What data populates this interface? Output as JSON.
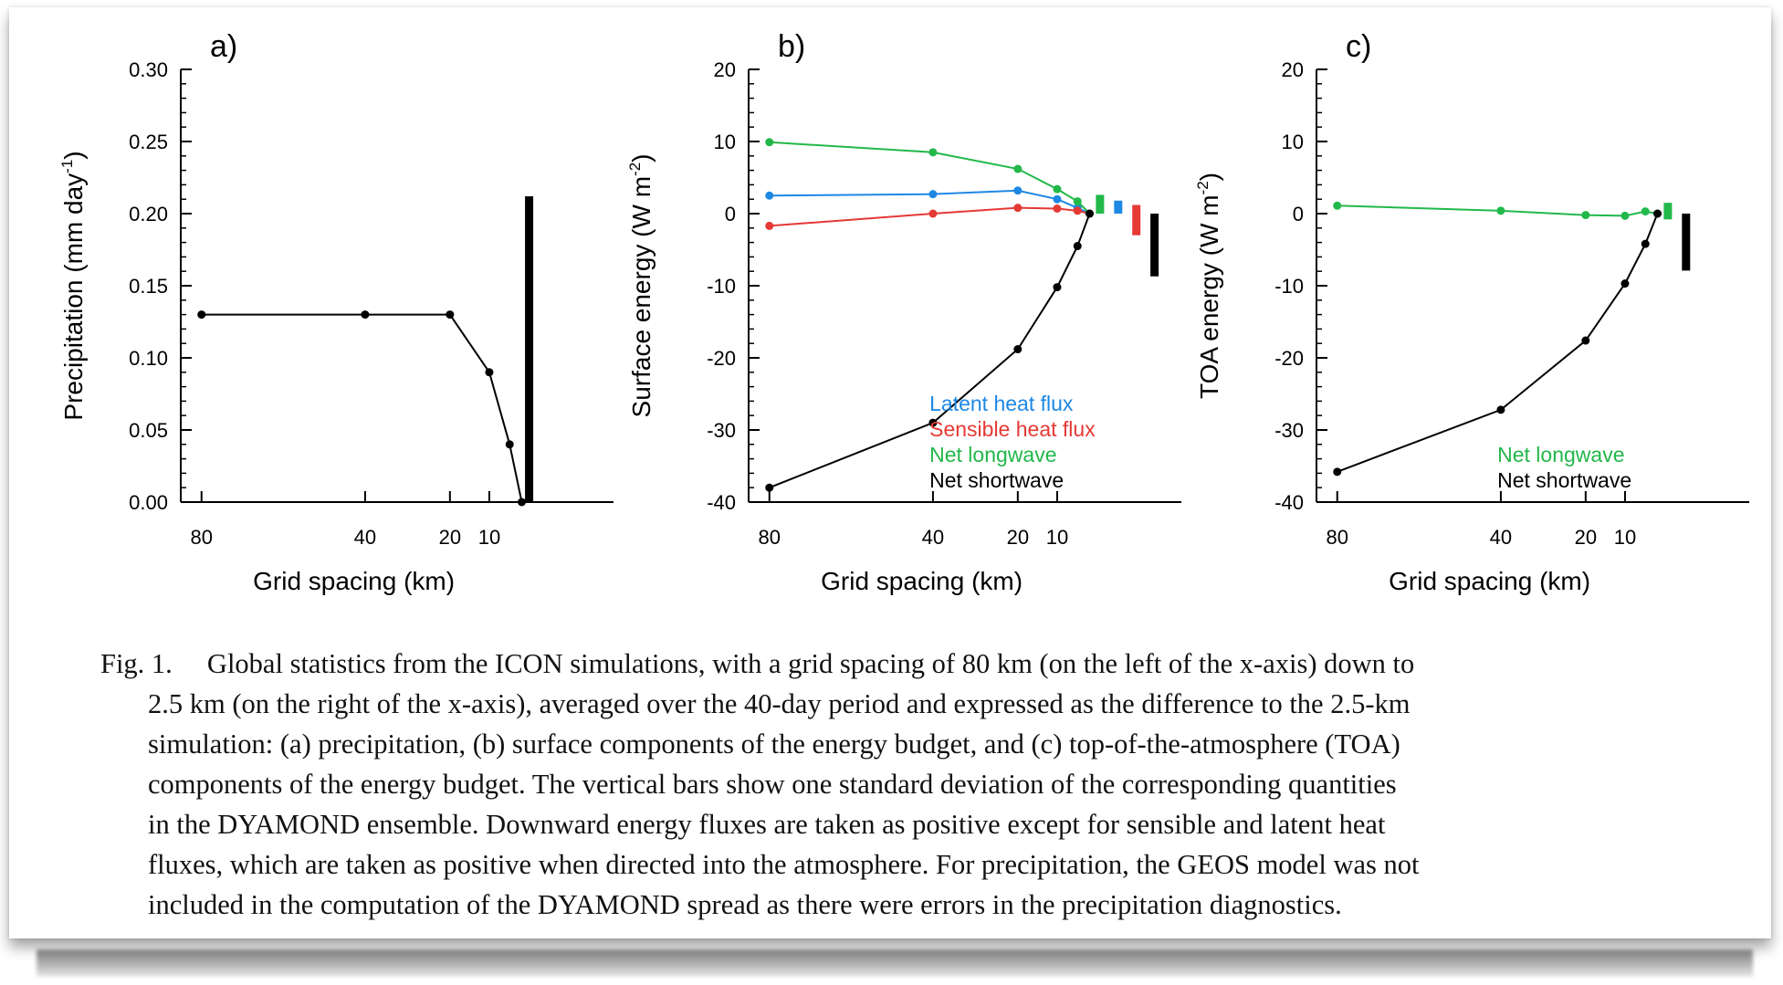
{
  "chart_data": [
    {
      "panel": "a)",
      "type": "line",
      "xlabel": "Grid spacing (km)",
      "ylabel": "Precipitation (mm day",
      "ylabel_sup": "-1",
      "ylabel_close": ")",
      "xticks": [
        "80",
        "40",
        "20",
        "10"
      ],
      "ylim": [
        0,
        0.3
      ],
      "yticks": [
        "0.00",
        "0.05",
        "0.10",
        "0.15",
        "0.20",
        "0.25",
        "0.30"
      ],
      "series": [
        {
          "color": "#000000",
          "x": [
            80,
            40,
            20,
            10,
            5,
            2.5
          ],
          "y": [
            0.13,
            0.13,
            0.13,
            0.09,
            0.04,
            0.0
          ]
        }
      ],
      "spread_bars": [
        {
          "color": "#000000",
          "low": 0.0,
          "high": 0.212
        }
      ],
      "legend": []
    },
    {
      "panel": "b)",
      "type": "line",
      "xlabel": "Grid spacing (km)",
      "ylabel": "Surface energy (W m",
      "ylabel_sup": "-2",
      "ylabel_close": ")",
      "xticks": [
        "80",
        "40",
        "20",
        "10"
      ],
      "ylim": [
        -40,
        20
      ],
      "yticks": [
        "-40",
        "-30",
        "-20",
        "-10",
        "0",
        "10",
        "20"
      ],
      "series": [
        {
          "name": "Latent heat flux",
          "color": "#1e88e5",
          "x": [
            80,
            40,
            20,
            10,
            5,
            2.5
          ],
          "y": [
            2.5,
            2.7,
            3.2,
            2.0,
            0.8,
            0.0
          ]
        },
        {
          "name": "Sensible heat flux",
          "color": "#e53935",
          "x": [
            80,
            40,
            20,
            10,
            5,
            2.5
          ],
          "y": [
            -1.7,
            0.0,
            0.8,
            0.7,
            0.4,
            0.0
          ]
        },
        {
          "name": "Net longwave",
          "color": "#22b84a",
          "x": [
            80,
            40,
            20,
            10,
            5,
            2.5
          ],
          "y": [
            9.9,
            8.5,
            6.2,
            3.4,
            1.7,
            0.0
          ]
        },
        {
          "name": "Net shortwave",
          "color": "#000000",
          "x": [
            80,
            40,
            20,
            10,
            5,
            2.5
          ],
          "y": [
            -38.0,
            -29.0,
            -18.8,
            -10.2,
            -4.5,
            0.0
          ]
        }
      ],
      "spread_bars": [
        {
          "color": "#22b84a",
          "low": 0.0,
          "high": 2.6
        },
        {
          "color": "#1e88e5",
          "low": 0.0,
          "high": 1.8
        },
        {
          "color": "#e53935",
          "low": -3.0,
          "high": 1.2
        },
        {
          "color": "#000000",
          "low": -8.7,
          "high": 0.0
        }
      ],
      "legend": [
        {
          "label": "Latent heat flux",
          "color": "#1e88e5"
        },
        {
          "label": "Sensible heat flux",
          "color": "#e53935"
        },
        {
          "label": "Net longwave",
          "color": "#22b84a"
        },
        {
          "label": "Net shortwave",
          "color": "#000000"
        }
      ]
    },
    {
      "panel": "c)",
      "type": "line",
      "xlabel": "Grid spacing (km)",
      "ylabel": "TOA energy (W m",
      "ylabel_sup": "-2",
      "ylabel_close": ")",
      "xticks": [
        "80",
        "40",
        "20",
        "10"
      ],
      "ylim": [
        -40,
        20
      ],
      "yticks": [
        "-40",
        "-30",
        "-20",
        "-10",
        "0",
        "10",
        "20"
      ],
      "series": [
        {
          "name": "Net longwave",
          "color": "#22b84a",
          "x": [
            80,
            40,
            20,
            10,
            5,
            2.5
          ],
          "y": [
            1.1,
            0.4,
            -0.2,
            -0.3,
            0.3,
            0.0
          ]
        },
        {
          "name": "Net shortwave",
          "color": "#000000",
          "x": [
            80,
            40,
            20,
            10,
            5,
            2.5
          ],
          "y": [
            -35.8,
            -27.2,
            -17.6,
            -9.7,
            -4.2,
            0.0
          ]
        }
      ],
      "spread_bars": [
        {
          "color": "#22b84a",
          "low": -0.8,
          "high": 1.5
        },
        {
          "color": "#000000",
          "low": -7.9,
          "high": 0.0
        }
      ],
      "legend": [
        {
          "label": "Net longwave",
          "color": "#22b84a"
        },
        {
          "label": "Net shortwave",
          "color": "#000000"
        }
      ]
    }
  ],
  "caption": {
    "lines": [
      "Fig. 1.  Global statistics from the ICON simulations, with a grid spacing of 80 km (on the left of the x-axis) down to",
      "2.5 km (on the right of the x-axis), averaged over the 40-day period and expressed as the difference to the 2.5-km",
      "simulation: (a) precipitation, (b) surface components of the energy budget, and (c) top-of-the-atmosphere (TOA)",
      "components of the energy budget. The vertical bars show one standard deviation of the corresponding quantities",
      "in the DYAMOND ensemble. Downward energy fluxes are taken as positive except for sensible and latent heat",
      "fluxes, which are taken as positive when directed into the atmosphere. For precipitation, the GEOS model was not",
      "included in the computation of the DYAMOND spread as there were errors in the precipitation diagnostics."
    ]
  }
}
